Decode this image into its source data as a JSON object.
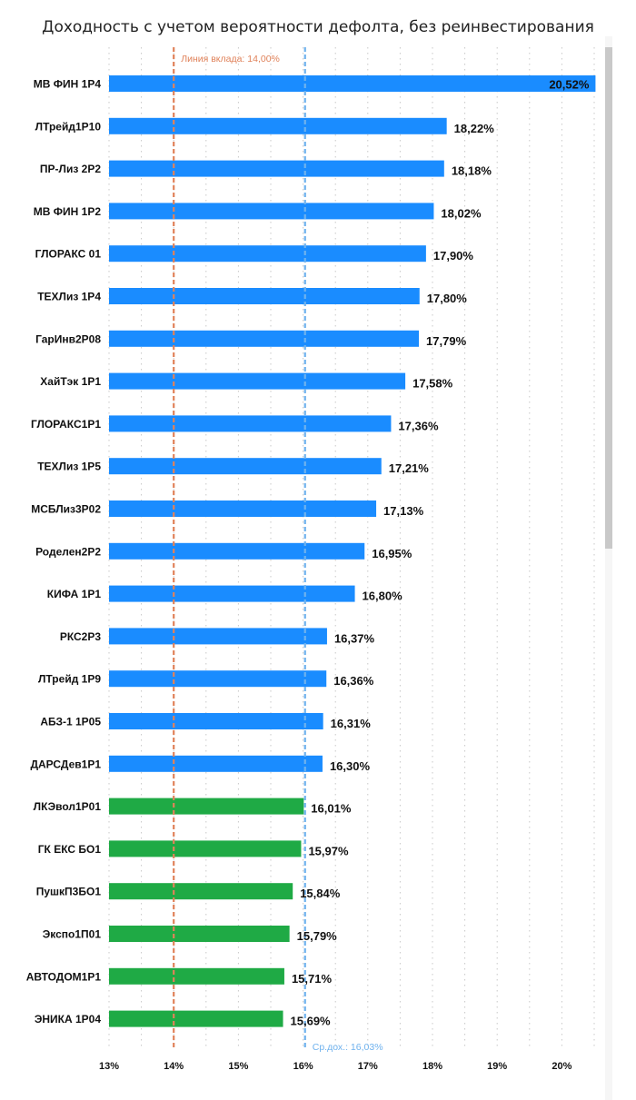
{
  "chart_data": {
    "type": "bar",
    "orientation": "horizontal",
    "title": "Доходность с учетом вероятности дефолта, без реинвестирования",
    "categories": [
      "МВ ФИН 1Р4",
      "ЛТрейд1Р10",
      "ПР-Лиз 2Р2",
      "МВ ФИН 1Р2",
      "ГЛОРАКС 01",
      "ТЕХЛиз 1Р4",
      "ГарИнв2Р08",
      "ХайТэк 1Р1",
      "ГЛОРАКС1Р1",
      "ТЕХЛиз 1Р5",
      "МСБЛиз3Р02",
      "Роделен2Р2",
      "КИФА 1Р1",
      "РКС2Р3",
      "ЛТрейд 1Р9",
      "АБЗ-1 1Р05",
      "ДАРСДев1Р1",
      "ЛКЭвол1Р01",
      "ГК ЕКС БО1",
      "ПушкП3БО1",
      "Экспо1П01",
      "АВТОДОМ1Р1",
      "ЭНИКА 1Р04"
    ],
    "values": [
      20.52,
      18.22,
      18.18,
      18.02,
      17.9,
      17.8,
      17.79,
      17.58,
      17.36,
      17.21,
      17.13,
      16.95,
      16.8,
      16.37,
      16.36,
      16.31,
      16.3,
      16.01,
      15.97,
      15.84,
      15.79,
      15.71,
      15.69
    ],
    "value_labels": [
      "20,52%",
      "18,22%",
      "18,18%",
      "18,02%",
      "17,90%",
      "17,80%",
      "17,79%",
      "17,58%",
      "17,36%",
      "17,21%",
      "17,13%",
      "16,95%",
      "16,80%",
      "16,37%",
      "16,36%",
      "16,31%",
      "16,30%",
      "16,01%",
      "15,97%",
      "15,84%",
      "15,79%",
      "15,71%",
      "15,69%"
    ],
    "bar_colors": [
      "#1a8cff",
      "#1a8cff",
      "#1a8cff",
      "#1a8cff",
      "#1a8cff",
      "#1a8cff",
      "#1a8cff",
      "#1a8cff",
      "#1a8cff",
      "#1a8cff",
      "#1a8cff",
      "#1a8cff",
      "#1a8cff",
      "#1a8cff",
      "#1a8cff",
      "#1a8cff",
      "#1a8cff",
      "#1faa45",
      "#1faa45",
      "#1faa45",
      "#1faa45",
      "#1faa45",
      "#1faa45"
    ],
    "x_ticks": [
      13,
      14,
      15,
      16,
      17,
      18,
      19,
      20
    ],
    "x_tick_labels": [
      "13%",
      "14%",
      "15%",
      "16%",
      "17%",
      "18%",
      "19%",
      "20%"
    ],
    "xlim": [
      13,
      20.55
    ],
    "grid": "vertical-dotted",
    "reference_lines": [
      {
        "value": 14.0,
        "label": "Линия вклада: 14,00%",
        "color": "#e0825a",
        "label_position": "top"
      },
      {
        "value": 16.03,
        "label": "Ср.дох.: 16,03%",
        "color": "#6fb2ee",
        "label_position": "bottom"
      }
    ]
  }
}
